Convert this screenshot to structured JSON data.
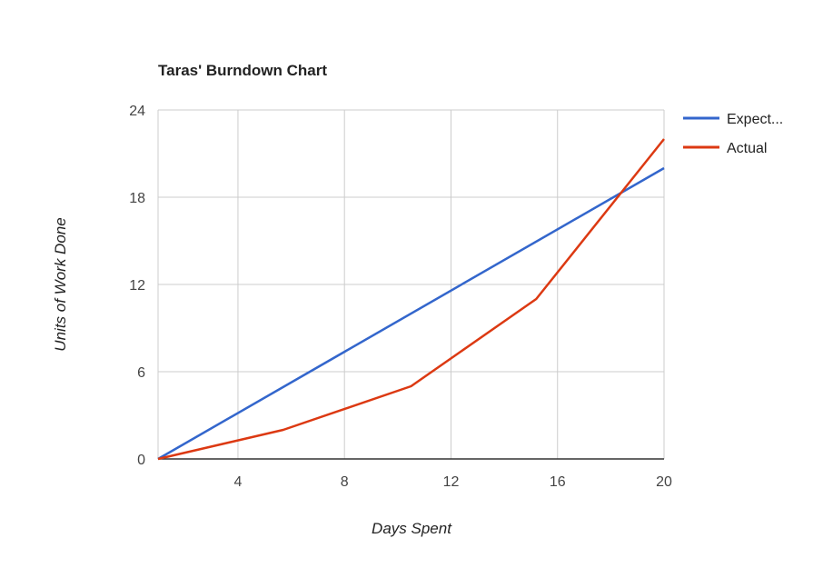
{
  "chart_data": {
    "type": "line",
    "title": "Taras' Burndown Chart",
    "xlabel": "Days Spent",
    "ylabel": "Units of Work Done",
    "xlim": [
      1,
      20
    ],
    "ylim": [
      0,
      24
    ],
    "x_ticks": [
      4,
      8,
      12,
      16,
      20
    ],
    "y_ticks": [
      0,
      6,
      12,
      18,
      24
    ],
    "grid": true,
    "legend_position": "right",
    "series": [
      {
        "name": "Expect...",
        "color": "#3366cc",
        "points": [
          [
            1,
            0
          ],
          [
            20,
            20
          ]
        ]
      },
      {
        "name": "Actual",
        "color": "#dc3912",
        "points": [
          [
            1,
            0
          ],
          [
            5.7,
            2
          ],
          [
            10.5,
            5
          ],
          [
            15.2,
            11
          ],
          [
            20,
            22
          ]
        ]
      }
    ]
  }
}
